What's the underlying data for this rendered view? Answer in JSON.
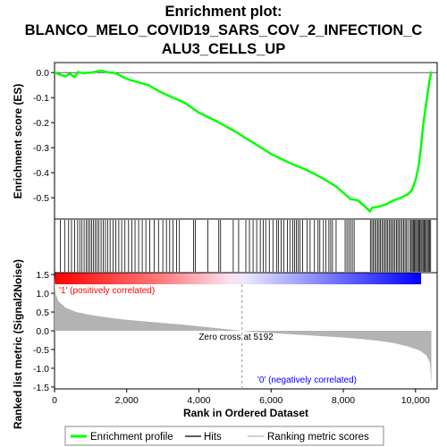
{
  "chart_data": {
    "type": "line",
    "title_lines": [
      "Enrichment plot:",
      "BLANCO_MELO_COVID19_SARS_COV_2_INFECTION_C",
      "ALU3_CELLS_UP"
    ],
    "xlabel": "Rank in Ordered Dataset",
    "ylabel_top": "Enrichment score (ES)",
    "ylabel_bottom": "Ranked list metric (Signal2Noise)",
    "xlim": [
      0,
      10600
    ],
    "x_ticks": [
      0,
      2000,
      4000,
      6000,
      8000,
      10000
    ],
    "x_tick_labels": [
      "0",
      "2,000",
      "4,000",
      "6,000",
      "8,000",
      "10,000"
    ],
    "es_ylim": [
      -0.585,
      0.04
    ],
    "es_ticks": [
      0.0,
      -0.1,
      -0.2,
      -0.3,
      -0.4,
      -0.5
    ],
    "es_tick_labels": [
      "0.0",
      "-0.1",
      "-0.2",
      "-0.3",
      "-0.4",
      "-0.5"
    ],
    "metric_ylim": [
      -1.55,
      1.55
    ],
    "metric_ticks": [
      1.5,
      1.0,
      0.5,
      0.0,
      -0.5,
      -1.0,
      -1.5
    ],
    "metric_tick_labels": [
      "1.5",
      "1.0",
      "0.5",
      "0.0",
      "-0.5",
      "-1.0",
      "-1.5"
    ],
    "colors": {
      "es_line": "#00ff00",
      "hits": "#000000",
      "metric_fill": "#b3b3b3",
      "positive_label": "#ff0000",
      "negative_label": "#0000ff",
      "zero_cross_line": "#999999"
    },
    "es_points": [
      [
        0,
        0.0
      ],
      [
        150,
        -0.008
      ],
      [
        300,
        -0.015
      ],
      [
        420,
        -0.005
      ],
      [
        560,
        -0.018
      ],
      [
        650,
        0.002
      ],
      [
        800,
        -0.002
      ],
      [
        1000,
        0.0
      ],
      [
        1200,
        0.005
      ],
      [
        1300,
        0.008
      ],
      [
        1450,
        0.002
      ],
      [
        1700,
        -0.003
      ],
      [
        1900,
        -0.018
      ],
      [
        2100,
        -0.03
      ],
      [
        2300,
        -0.038
      ],
      [
        2600,
        -0.05
      ],
      [
        2900,
        -0.075
      ],
      [
        3200,
        -0.095
      ],
      [
        3600,
        -0.12
      ],
      [
        4000,
        -0.16
      ],
      [
        4500,
        -0.195
      ],
      [
        5000,
        -0.235
      ],
      [
        5500,
        -0.28
      ],
      [
        6000,
        -0.325
      ],
      [
        6500,
        -0.36
      ],
      [
        7000,
        -0.39
      ],
      [
        7400,
        -0.42
      ],
      [
        7800,
        -0.455
      ],
      [
        8200,
        -0.505
      ],
      [
        8400,
        -0.51
      ],
      [
        8600,
        -0.535
      ],
      [
        8740,
        -0.555
      ],
      [
        8800,
        -0.54
      ],
      [
        9000,
        -0.535
      ],
      [
        9200,
        -0.525
      ],
      [
        9400,
        -0.51
      ],
      [
        9600,
        -0.5
      ],
      [
        9800,
        -0.485
      ],
      [
        9900,
        -0.47
      ],
      [
        10000,
        -0.43
      ],
      [
        10080,
        -0.38
      ],
      [
        10150,
        -0.3
      ],
      [
        10220,
        -0.2
      ],
      [
        10300,
        -0.12
      ],
      [
        10380,
        -0.04
      ],
      [
        10440,
        0.005
      ]
    ],
    "hit_ranks": [
      160,
      280,
      390,
      470,
      560,
      640,
      700,
      760,
      820,
      880,
      930,
      980,
      1030,
      1080,
      1130,
      1180,
      1230,
      1290,
      1350,
      1410,
      1470,
      1540,
      1620,
      1700,
      1780,
      1860,
      1950,
      2050,
      2140,
      2230,
      2330,
      2430,
      2530,
      2640,
      2760,
      2880,
      3000,
      3100,
      3190,
      3280,
      3380,
      3460,
      3850,
      3900,
      4250,
      4550,
      4600,
      4950,
      5100,
      5300,
      5400,
      5500,
      5600,
      5700,
      5780,
      5850,
      5950,
      6050,
      6150,
      6200,
      6280,
      6350,
      6450,
      6520,
      6600,
      6650,
      6700,
      6750,
      6800,
      6870,
      7000,
      7080,
      7200,
      7300,
      7350,
      7450,
      7520,
      7600,
      7650,
      7700,
      7800,
      8050,
      8100,
      8150,
      8200,
      8250,
      8300,
      8750,
      8790,
      8830,
      8870,
      8910,
      8950,
      8990,
      9030,
      9070,
      9110,
      9150,
      9190,
      9230,
      9270,
      9310,
      9350,
      9390,
      9430,
      9470,
      9510,
      9550,
      9590,
      9630,
      9670,
      9710,
      9750,
      9790,
      9850,
      9880,
      9910,
      9940,
      9970,
      10000,
      10030,
      10060,
      10090,
      10120,
      10150,
      10180,
      10210,
      10240,
      10270,
      10300,
      10330,
      10360,
      10390,
      10420
    ],
    "metric_points": [
      [
        0,
        1.45
      ],
      [
        30,
        1.0
      ],
      [
        100,
        0.8
      ],
      [
        300,
        0.62
      ],
      [
        600,
        0.5
      ],
      [
        1000,
        0.42
      ],
      [
        1500,
        0.35
      ],
      [
        2000,
        0.29
      ],
      [
        2500,
        0.25
      ],
      [
        3000,
        0.21
      ],
      [
        3500,
        0.17
      ],
      [
        4000,
        0.12
      ],
      [
        4500,
        0.07
      ],
      [
        5000,
        0.02
      ],
      [
        5192,
        0.0
      ],
      [
        5500,
        -0.03
      ],
      [
        6000,
        -0.06
      ],
      [
        6500,
        -0.09
      ],
      [
        7000,
        -0.12
      ],
      [
        7500,
        -0.15
      ],
      [
        8000,
        -0.18
      ],
      [
        8500,
        -0.22
      ],
      [
        9000,
        -0.27
      ],
      [
        9400,
        -0.33
      ],
      [
        9800,
        -0.42
      ],
      [
        10100,
        -0.52
      ],
      [
        10300,
        -0.65
      ],
      [
        10400,
        -0.85
      ],
      [
        10440,
        -1.4
      ]
    ],
    "zero_cross_rank": 5192,
    "zero_cross_label": "Zero cross at 5192",
    "positive_label": "'1' (positively correlated)",
    "negative_label": "'0' (negatively correlated)",
    "legend": [
      "Enrichment profile",
      "Hits",
      "Ranking metric scores"
    ]
  }
}
